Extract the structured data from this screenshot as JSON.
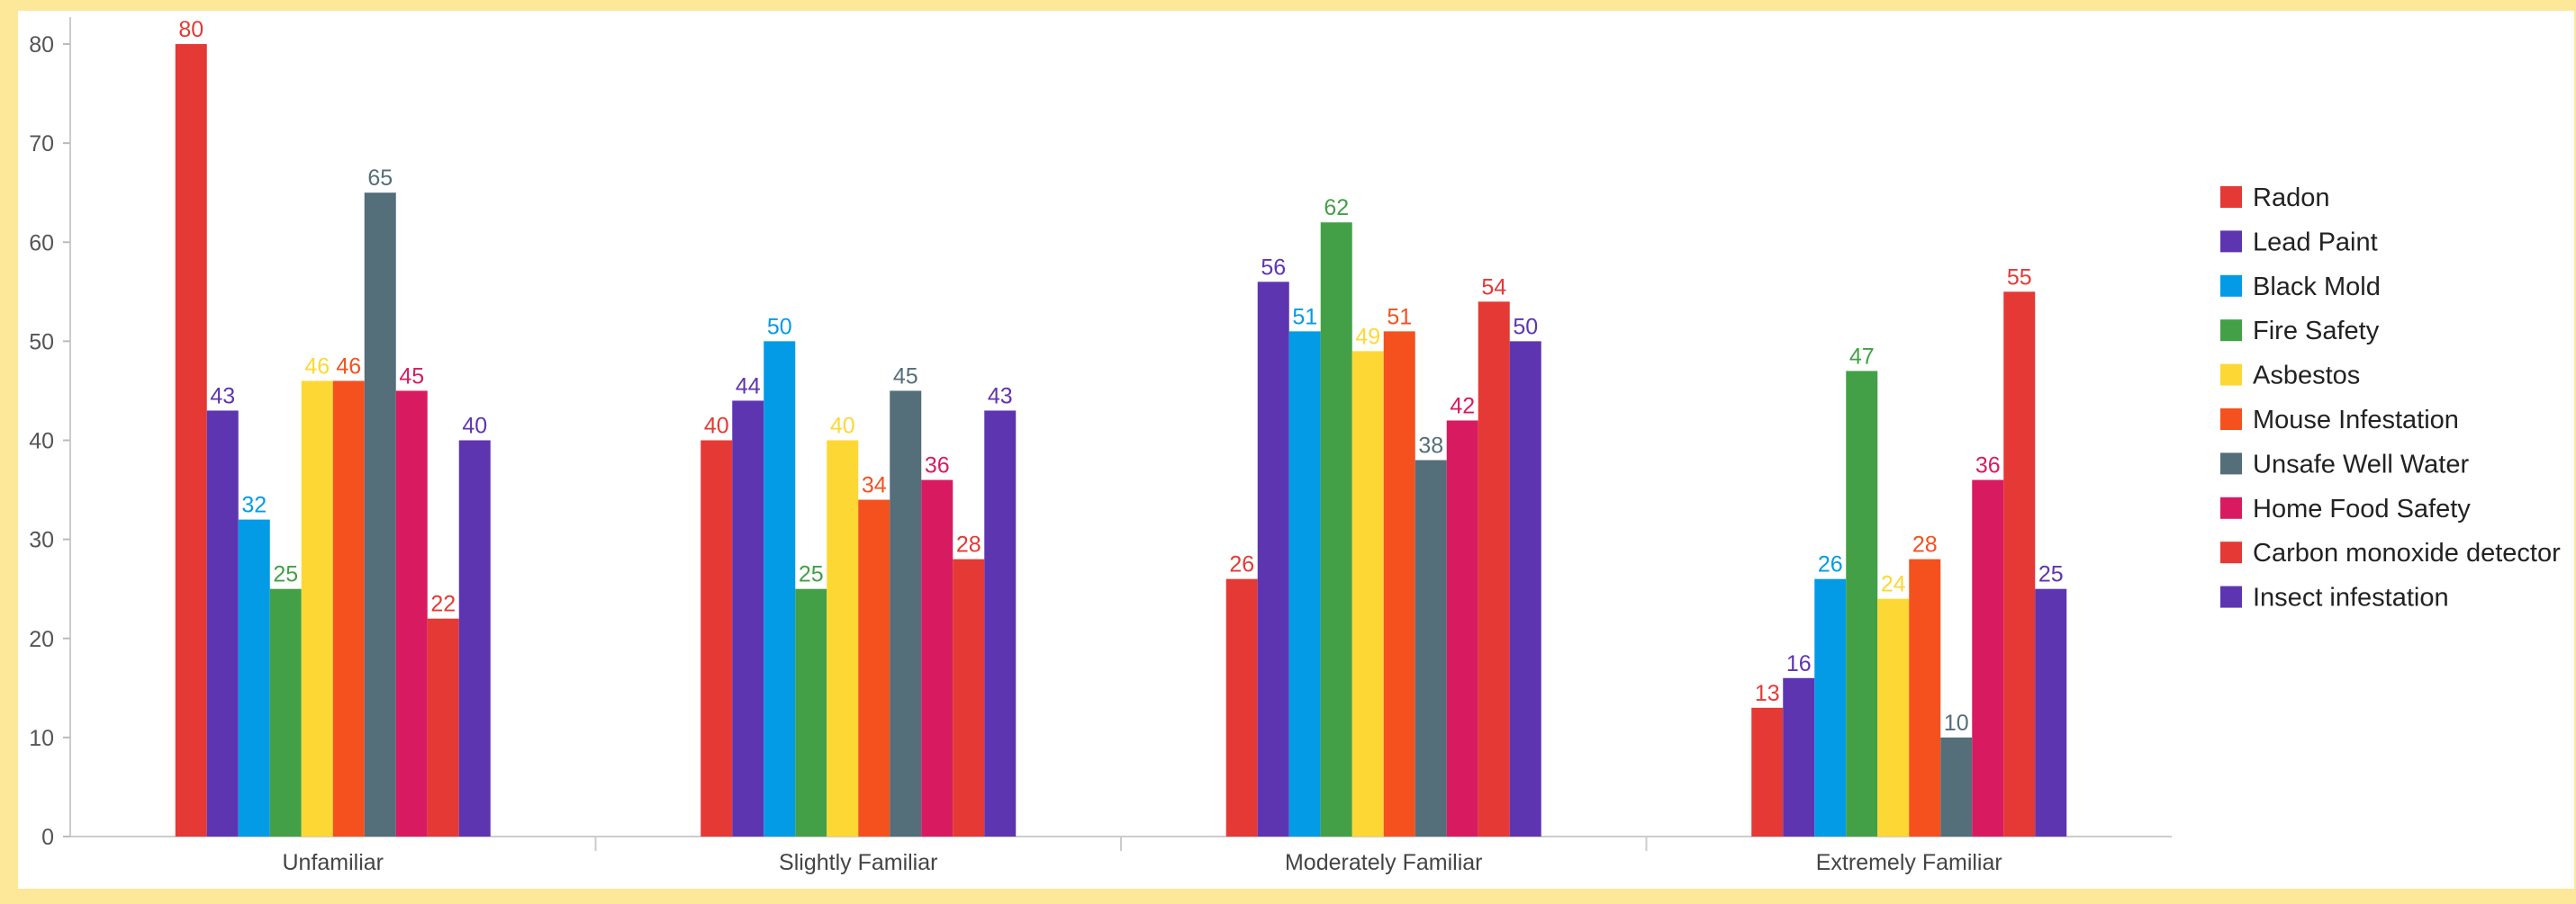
{
  "chart_data": {
    "type": "bar",
    "title": "",
    "xlabel": "",
    "ylabel": "",
    "ylim": [
      0,
      80
    ],
    "yticks": [
      0,
      10,
      20,
      30,
      40,
      50,
      60,
      70,
      80
    ],
    "grid": false,
    "legend_position": "right",
    "categories": [
      "Unfamiliar",
      "Slightly Familiar",
      "Moderately Familiar",
      "Extremely Familiar"
    ],
    "series": [
      {
        "name": "Radon",
        "color": "#e53935",
        "values": [
          80,
          40,
          26,
          13
        ]
      },
      {
        "name": "Lead Paint",
        "color": "#5e35b1",
        "values": [
          43,
          44,
          56,
          16
        ]
      },
      {
        "name": "Black Mold",
        "color": "#039be5",
        "values": [
          32,
          50,
          51,
          26
        ]
      },
      {
        "name": "Fire Safety",
        "color": "#43a047",
        "values": [
          25,
          25,
          62,
          47
        ]
      },
      {
        "name": "Asbestos",
        "color": "#fdd835",
        "values": [
          46,
          40,
          49,
          24
        ]
      },
      {
        "name": "Mouse Infestation",
        "color": "#f4511e",
        "values": [
          46,
          34,
          51,
          28
        ]
      },
      {
        "name": "Unsafe Well Water",
        "color": "#546e7a",
        "values": [
          65,
          45,
          38,
          10
        ]
      },
      {
        "name": "Home Food Safety",
        "color": "#d81b60",
        "values": [
          45,
          36,
          42,
          36
        ]
      },
      {
        "name": "Carbon monoxide detector",
        "color": "#e53935",
        "values": [
          22,
          28,
          54,
          55
        ]
      },
      {
        "name": "Insect infestation",
        "color": "#5e35b1",
        "values": [
          40,
          43,
          50,
          25
        ]
      }
    ]
  }
}
